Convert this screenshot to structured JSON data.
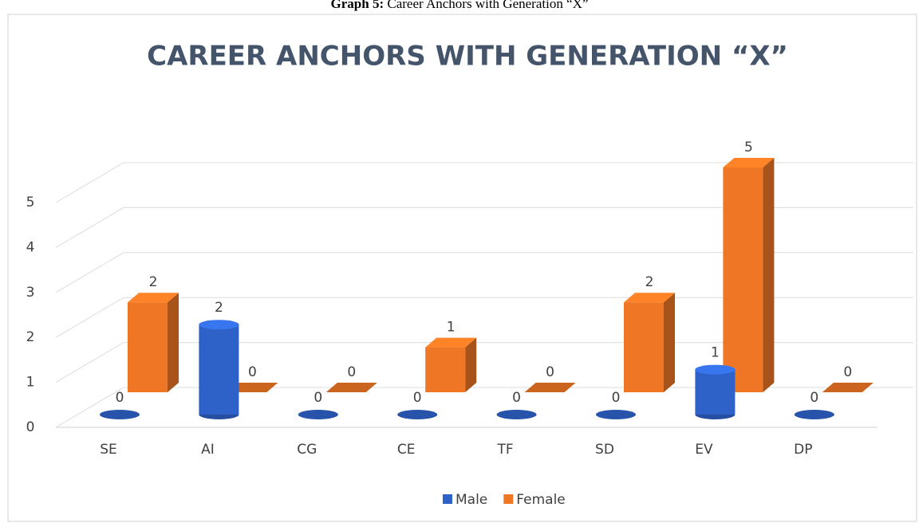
{
  "caption_label": "Graph 5:",
  "caption": "Career Anchors with Generation “X”",
  "chart_data": {
    "type": "bar3d",
    "title": "CAREER ANCHORS WITH GENERATION “X”",
    "categories": [
      "SE",
      "AI",
      "CG",
      "CE",
      "TF",
      "SD",
      "EV",
      "DP"
    ],
    "series": [
      {
        "name": "Male",
        "color": "#2f62c8",
        "values": [
          0,
          2,
          0,
          0,
          0,
          0,
          1,
          0
        ]
      },
      {
        "name": "Female",
        "color": "#ee7624",
        "values": [
          2,
          0,
          0,
          1,
          0,
          2,
          5,
          0
        ]
      }
    ],
    "ylim": [
      0,
      5.5
    ],
    "yticks": [
      0,
      1,
      2,
      3,
      4,
      5
    ],
    "grid": true,
    "legend": "bottom"
  }
}
